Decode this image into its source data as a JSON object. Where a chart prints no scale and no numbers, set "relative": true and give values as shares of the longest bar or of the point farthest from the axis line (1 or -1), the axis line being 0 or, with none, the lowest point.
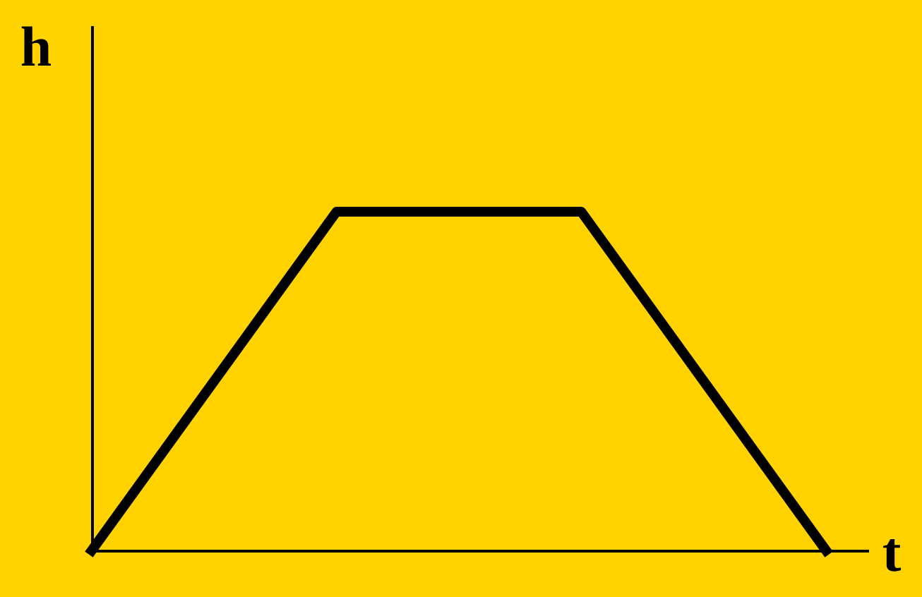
{
  "chart_data": {
    "type": "line",
    "xlabel": "t",
    "ylabel": "h",
    "categories": [
      null,
      null,
      null,
      null
    ],
    "series": [
      {
        "color": "#000000",
        "values": [
          0,
          1,
          1,
          0
        ]
      }
    ],
    "relative": true,
    "tick_labels": false,
    "grid": false
  }
}
